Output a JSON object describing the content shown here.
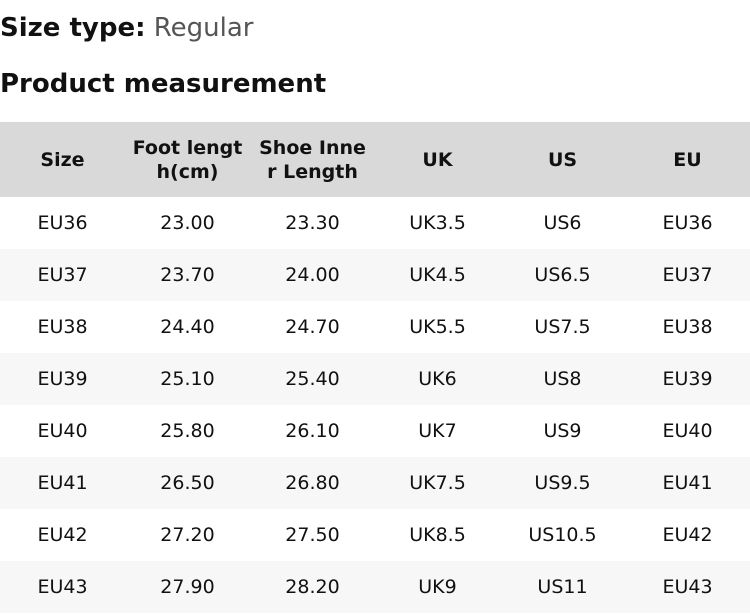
{
  "size_type": {
    "label": "Size type:",
    "value": "Regular"
  },
  "heading": "Product measurement",
  "table": {
    "headers": [
      "Size",
      "Foot length(cm)",
      "Shoe Inner Length",
      "UK",
      "US",
      "EU"
    ],
    "rows": [
      [
        "EU36",
        "23.00",
        "23.30",
        "UK3.5",
        "US6",
        "EU36"
      ],
      [
        "EU37",
        "23.70",
        "24.00",
        "UK4.5",
        "US6.5",
        "EU37"
      ],
      [
        "EU38",
        "24.40",
        "24.70",
        "UK5.5",
        "US7.5",
        "EU38"
      ],
      [
        "EU39",
        "25.10",
        "25.40",
        "UK6",
        "US8",
        "EU39"
      ],
      [
        "EU40",
        "25.80",
        "26.10",
        "UK7",
        "US9",
        "EU40"
      ],
      [
        "EU41",
        "26.50",
        "26.80",
        "UK7.5",
        "US9.5",
        "EU41"
      ],
      [
        "EU42",
        "27.20",
        "27.50",
        "UK8.5",
        "US10.5",
        "EU42"
      ],
      [
        "EU43",
        "27.90",
        "28.20",
        "UK9",
        "US11",
        "EU43"
      ]
    ]
  },
  "colors": {
    "header_bg": "#d9d9d9",
    "stripe_bg": "#f7f7f7",
    "value_text": "#555555"
  }
}
